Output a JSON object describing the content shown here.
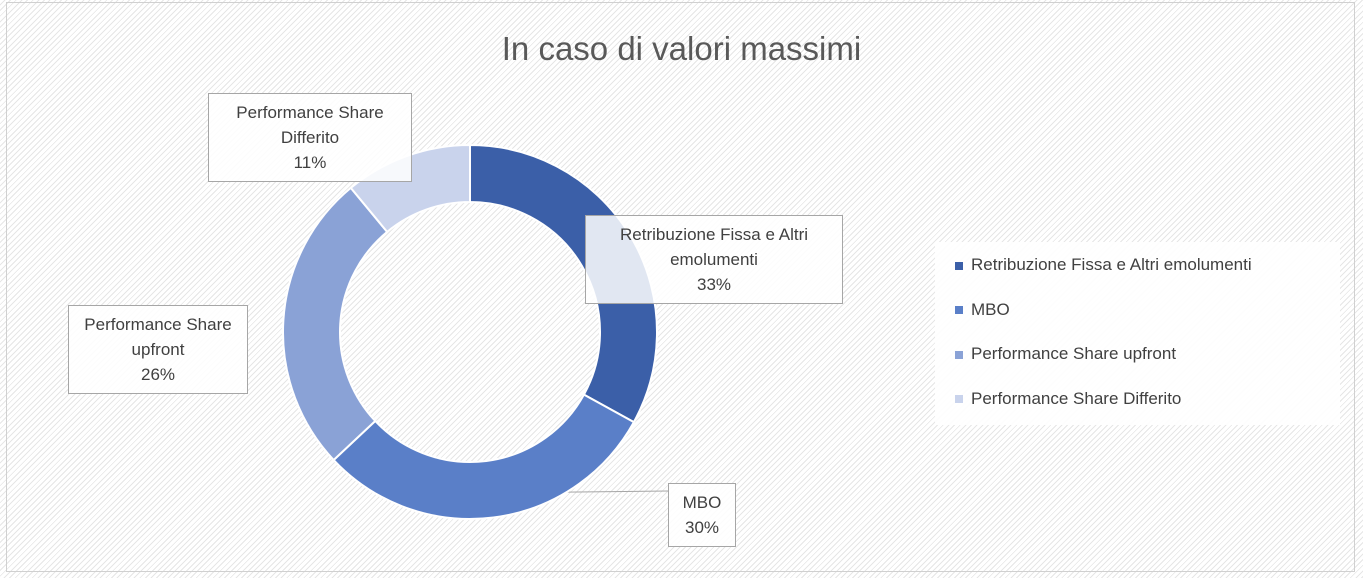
{
  "chart_data": {
    "type": "donut",
    "title": "In caso di valori massimi",
    "categories": [
      "Retribuzione Fissa e Altri emolumenti",
      "MBO",
      "Performance Share upfront",
      "Performance Share Differito"
    ],
    "values": [
      33,
      30,
      26,
      11
    ],
    "value_labels": [
      "33%",
      "30%",
      "26%",
      "11%"
    ],
    "colors": [
      "#3b5fa8",
      "#5a7fc8",
      "#8aa2d6",
      "#c9d3ec"
    ],
    "legend": "right"
  }
}
